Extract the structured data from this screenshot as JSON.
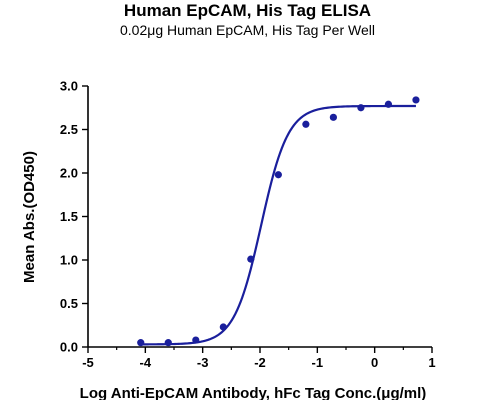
{
  "chart_data": {
    "type": "scatter",
    "title": "Human EpCAM, His Tag ELISA",
    "subtitle": "0.02μg Human EpCAM, His Tag Per Well",
    "xlabel": "Log Anti-EpCAM Antibody, hFc Tag Conc.(μg/ml)",
    "ylabel": "Mean Abs.(OD450)",
    "xlim": [
      -5,
      1
    ],
    "ylim": [
      0,
      3.0
    ],
    "x_ticks": [
      "-5",
      "-4",
      "-3",
      "-2",
      "-1",
      "0",
      "1"
    ],
    "y_ticks": [
      "0.0",
      "0.5",
      "1.0",
      "1.5",
      "2.0",
      "2.5",
      "3.0"
    ],
    "series": [
      {
        "x": [
          -4.08,
          -3.6,
          -3.12,
          -2.64,
          -2.16,
          -1.68,
          -1.2,
          -0.72,
          -0.24,
          0.24,
          0.72
        ],
        "y": [
          0.05,
          0.05,
          0.08,
          0.23,
          1.01,
          1.98,
          2.56,
          2.64,
          2.75,
          2.79,
          2.84
        ]
      }
    ],
    "fit_curve": {
      "bottom": 0.03,
      "top": 2.77,
      "log_ec50": -1.98,
      "hill_slope": 1.85
    },
    "grid": false,
    "legend": "none",
    "colors": {
      "series": "#1a1f9c",
      "axis": "#000000"
    }
  }
}
